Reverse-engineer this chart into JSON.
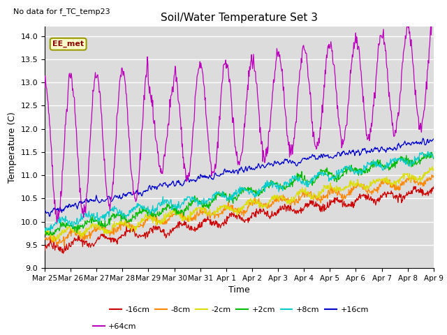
{
  "title": "Soil/Water Temperature Set 3",
  "subtitle": "No data for f_TC_temp23",
  "xlabel": "Time",
  "ylabel": "Temperature (C)",
  "ylim": [
    9.0,
    14.2
  ],
  "yticks": [
    9.0,
    9.5,
    10.0,
    10.5,
    11.0,
    11.5,
    12.0,
    12.5,
    13.0,
    13.5,
    14.0
  ],
  "bg_color": "#dcdcdc",
  "legend_label": "EE_met",
  "legend_box_bg": "#ffffcc",
  "legend_box_edge": "#999900",
  "legend_text_color": "#880000",
  "series_names": [
    "-16cm",
    "-8cm",
    "-2cm",
    "+2cm",
    "+8cm",
    "+16cm",
    "+64cm"
  ],
  "series_colors": [
    "#cc0000",
    "#ff8800",
    "#dddd00",
    "#00bb00",
    "#00cccc",
    "#0000cc",
    "#bb00bb"
  ],
  "series_starts": [
    9.4,
    9.55,
    9.7,
    9.8,
    9.9,
    10.2,
    11.5
  ],
  "series_ends": [
    10.7,
    10.95,
    11.1,
    11.35,
    11.5,
    11.7,
    13.2
  ],
  "num_points": 800,
  "num_days": 15,
  "xtick_labels": [
    "Mar 25",
    "Mar 26",
    "Mar 27",
    "Mar 28",
    "Mar 29",
    "Mar 30",
    "Mar 31",
    "Apr 1",
    "Apr 2",
    "Apr 3",
    "Apr 4",
    "Apr 5",
    "Apr 6",
    "Apr 7",
    "Apr 8",
    "Apr 9"
  ],
  "legend_entries": [
    "-16cm",
    "-8cm",
    "-2cm",
    "+2cm",
    "+8cm",
    "+16cm",
    "+64cm"
  ],
  "legend_colors": [
    "#cc0000",
    "#ff8800",
    "#dddd00",
    "#00bb00",
    "#00cccc",
    "#0000cc",
    "#bb00bb"
  ]
}
